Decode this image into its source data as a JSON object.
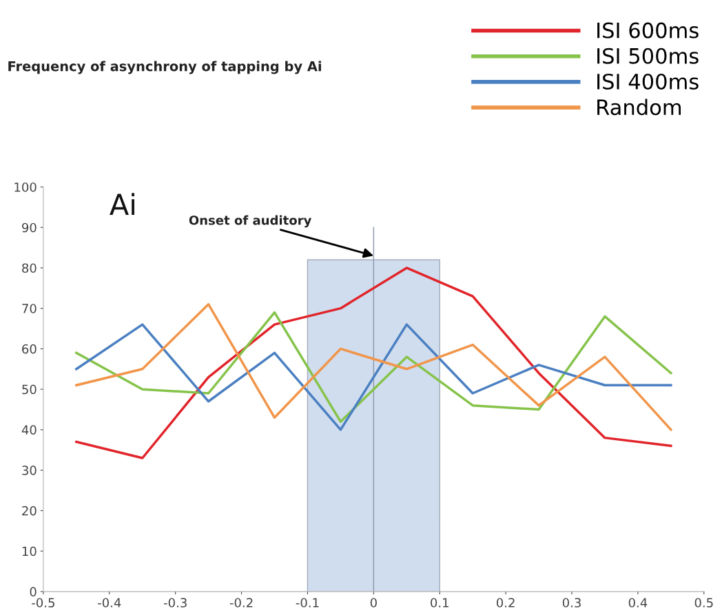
{
  "chart_data": {
    "type": "line",
    "title": "Frequency of asynchrony of tapping by Ai",
    "x": [
      -0.45,
      -0.35,
      -0.25,
      -0.15,
      -0.05,
      0.05,
      0.15,
      0.25,
      0.35,
      0.45
    ],
    "series": [
      {
        "name": "ISI 600ms",
        "color": "#e0242a",
        "values": [
          37,
          33,
          53,
          66,
          70,
          80,
          73,
          54,
          38,
          36
        ]
      },
      {
        "name": "ISI 500ms",
        "color": "#86c34a",
        "values": [
          59,
          50,
          49,
          69,
          42,
          58,
          46,
          45,
          68,
          54
        ]
      },
      {
        "name": "ISI 400ms",
        "color": "#4a7fc1",
        "values": [
          55,
          66,
          47,
          59,
          40,
          66,
          49,
          56,
          51,
          51
        ]
      },
      {
        "name": "Random",
        "color": "#f0954a",
        "values": [
          51,
          55,
          71,
          43,
          60,
          55,
          61,
          46,
          58,
          40
        ]
      }
    ],
    "xlim": [
      -0.5,
      0.5
    ],
    "xticks": [
      -0.5,
      -0.4,
      -0.3,
      -0.2,
      -0.1,
      0,
      0.1,
      0.2,
      0.3,
      0.4,
      0.5
    ],
    "ylim": [
      0,
      100
    ],
    "yticks": [
      0,
      10,
      20,
      30,
      40,
      50,
      60,
      70,
      80,
      90,
      100
    ],
    "bands": [
      {
        "axis": "x",
        "from": -0.1,
        "to": 0.1,
        "color": "#c5d5ea"
      }
    ],
    "ref_lines": [
      {
        "axis": "x",
        "value": 0,
        "color": "#8a97a8"
      }
    ],
    "annotations": [
      "Ai",
      {
        "text": "Onset of auditory",
        "x": 0,
        "y": 83
      }
    ],
    "legend": "top right",
    "grid": false,
    "marker": "none",
    "line_style": "solid"
  }
}
